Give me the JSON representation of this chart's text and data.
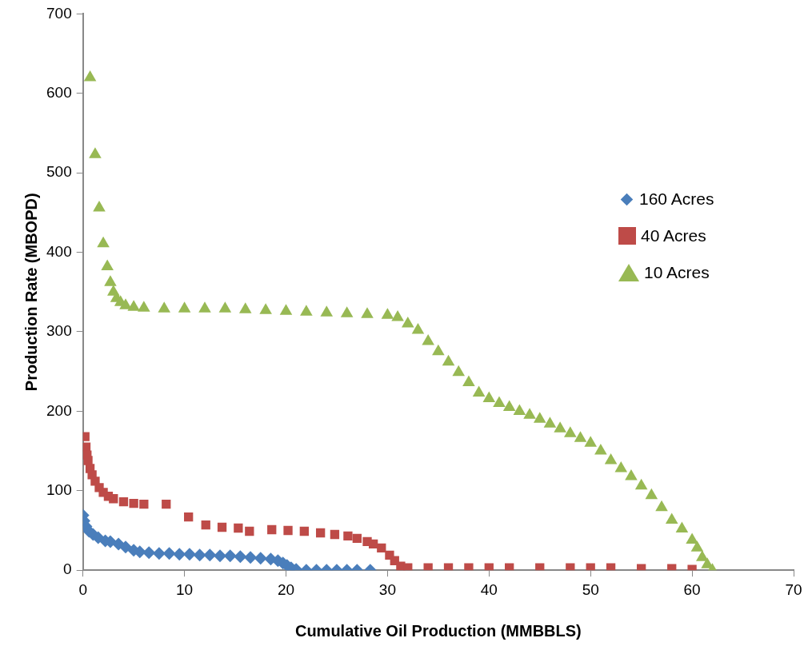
{
  "chart_data": {
    "type": "scatter",
    "xlabel": "Cumulative Oil Production (MMBBLS)",
    "ylabel": "Production Rate (MBOPD)",
    "xlim": [
      0,
      70
    ],
    "xticks": [
      0,
      10,
      20,
      30,
      40,
      50,
      60,
      70
    ],
    "ylim": [
      0,
      700
    ],
    "yticks": [
      0,
      100,
      200,
      300,
      400,
      500,
      600,
      700
    ],
    "grid": false,
    "legend": "right",
    "series": [
      {
        "name": "160 Acres",
        "color": "#4a7ebb",
        "marker": "diamond",
        "x": [
          0,
          0.1,
          0.3,
          0.6,
          1,
          1.5,
          2.2,
          2.7,
          3.5,
          4.2,
          5,
          5.6,
          6.5,
          7.5,
          8.5,
          9.5,
          10.5,
          11.5,
          12.5,
          13.5,
          14.5,
          15.5,
          16.5,
          17.5,
          18.5,
          19.2,
          19.7,
          20.1,
          20.5,
          21,
          22,
          23,
          24,
          25,
          26,
          27,
          28.3
        ],
        "values": [
          69,
          62,
          55,
          49,
          45,
          41,
          37,
          36,
          33,
          29,
          25,
          23,
          22,
          21,
          21,
          20,
          20,
          19,
          19,
          18,
          18,
          17,
          16,
          15,
          14,
          12,
          9,
          6,
          3,
          1,
          0,
          0,
          0,
          0,
          0,
          0,
          0
        ]
      },
      {
        "name": "40 Acres",
        "color": "#be4b48",
        "marker": "square",
        "x": [
          0.2,
          0.3,
          0.4,
          0.5,
          0.7,
          0.9,
          1.2,
          1.6,
          2,
          2.5,
          3,
          4,
          5,
          6,
          8.2,
          10.4,
          12.1,
          13.7,
          15.3,
          16.4,
          18.6,
          20.2,
          21.8,
          23.4,
          24.8,
          26.1,
          27,
          28,
          28.6,
          29.4,
          30.2,
          30.7,
          31.3,
          32,
          34,
          36,
          38,
          40,
          42,
          45,
          48,
          50,
          52,
          55,
          58,
          60
        ],
        "values": [
          168,
          155,
          145,
          138,
          128,
          120,
          112,
          104,
          98,
          93,
          90,
          86,
          84,
          83,
          83,
          67,
          57,
          54,
          53,
          49,
          51,
          50,
          49,
          47,
          45,
          43,
          40,
          36,
          33,
          28,
          19,
          12,
          5,
          3,
          3,
          3,
          3,
          3,
          3,
          3,
          3,
          3,
          3,
          2,
          2,
          1
        ]
      },
      {
        "name": "10 Acres",
        "color": "#98b954",
        "marker": "triangle",
        "x": [
          0.7,
          1.2,
          1.6,
          2,
          2.4,
          2.7,
          3,
          3.3,
          3.7,
          4.2,
          5,
          6,
          8,
          10,
          12,
          14,
          16,
          18,
          20,
          22,
          24,
          26,
          28,
          30,
          31,
          32,
          33,
          34,
          35,
          36,
          37,
          38,
          39,
          40,
          41,
          42,
          43,
          44,
          45,
          46,
          47,
          48,
          49,
          50,
          51,
          52,
          53,
          54,
          55,
          56,
          57,
          58,
          59,
          60,
          60.5,
          61,
          61.5,
          62
        ],
        "values": [
          620,
          523,
          456,
          411,
          382,
          362,
          350,
          342,
          337,
          333,
          331,
          330,
          329,
          329,
          329,
          329,
          328,
          327,
          326,
          325,
          324,
          323,
          322,
          321,
          318,
          310,
          302,
          288,
          275,
          262,
          249,
          236,
          223,
          216,
          210,
          205,
          200,
          195,
          190,
          184,
          178,
          172,
          166,
          160,
          150,
          138,
          128,
          118,
          106,
          94,
          79,
          63,
          52,
          38,
          28,
          16,
          7,
          0
        ]
      }
    ]
  }
}
